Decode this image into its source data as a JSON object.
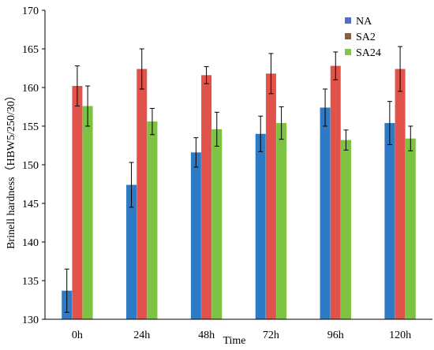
{
  "chart_data": {
    "type": "bar",
    "title": "",
    "xlabel": "Time",
    "ylabel": "Brinell hardness（HBW5/250/30）",
    "ylim": [
      130,
      170
    ],
    "yticks": [
      130,
      135,
      140,
      145,
      150,
      155,
      160,
      165,
      170
    ],
    "categories": [
      "0h",
      "24h",
      "48h",
      "72h",
      "96h",
      "120h"
    ],
    "grid": false,
    "legend_position": "top-right",
    "series": [
      {
        "name": "NA",
        "color": "#2e7ac4",
        "legend_color": "#4f6fc8",
        "values": [
          133.7,
          147.4,
          151.6,
          154.0,
          157.4,
          155.4
        ],
        "errors": [
          2.8,
          2.9,
          1.9,
          2.3,
          2.4,
          2.8
        ]
      },
      {
        "name": "SA2",
        "color": "#e0524a",
        "legend_color": "#8b5e3c",
        "values": [
          160.2,
          162.4,
          161.6,
          161.8,
          162.8,
          162.4
        ],
        "errors": [
          2.6,
          2.6,
          1.1,
          2.6,
          1.8,
          2.9
        ]
      },
      {
        "name": "SA24",
        "color": "#7dc242",
        "legend_color": "#8bc34a",
        "values": [
          157.6,
          155.6,
          154.6,
          155.4,
          153.2,
          153.4
        ],
        "errors": [
          2.6,
          1.7,
          2.2,
          2.1,
          1.3,
          1.6
        ]
      }
    ]
  }
}
